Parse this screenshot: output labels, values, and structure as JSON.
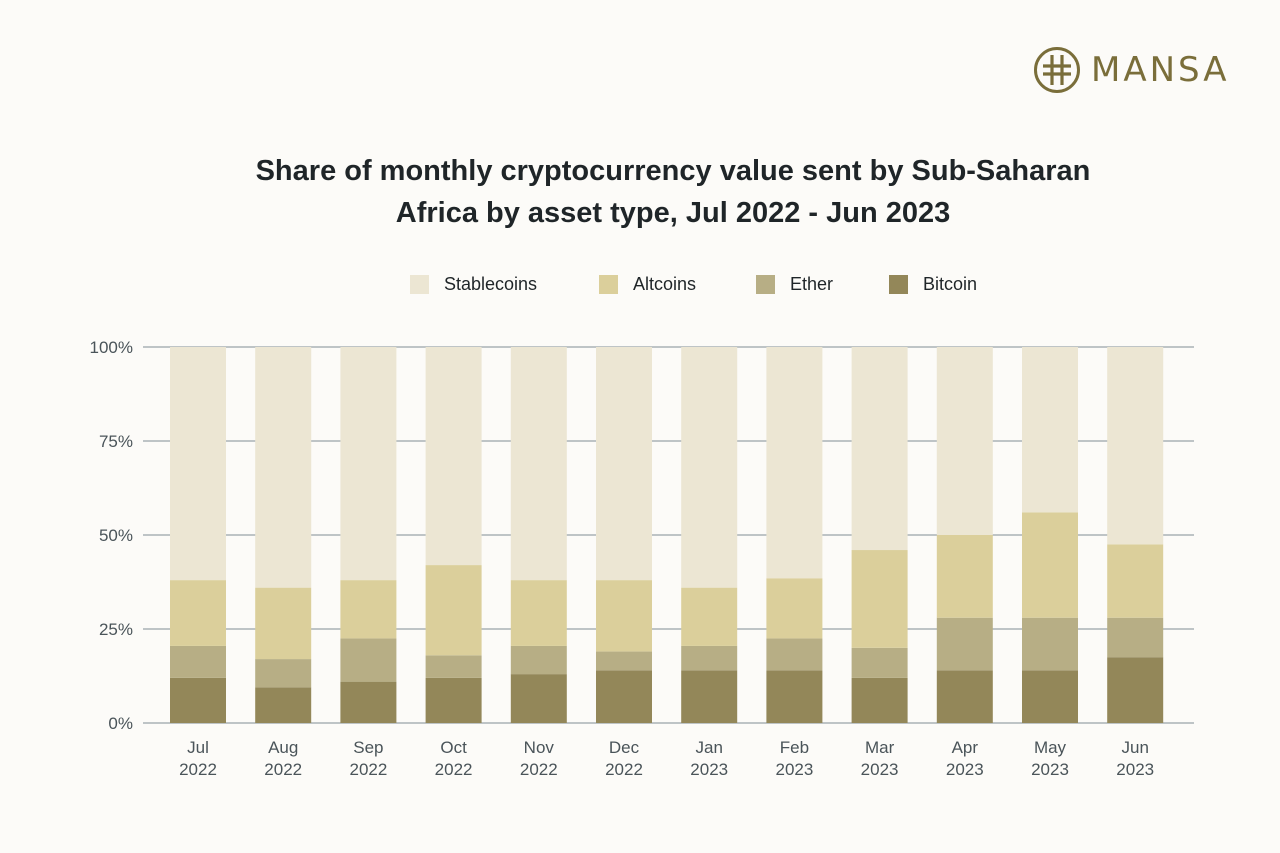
{
  "brand": {
    "name": "MANSA",
    "color": "#7a6e3a"
  },
  "chart_data": {
    "type": "bar",
    "stacked": true,
    "title": "Share of monthly cryptocurrency value sent by Sub-Saharan Africa by asset type, Jul 2022 - Jun 2023",
    "title_lines": [
      "Share of monthly cryptocurrency value sent by Sub-Saharan",
      "Africa by asset type, Jul 2022 - Jun 2023"
    ],
    "categories": [
      "Jul 2022",
      "Aug 2022",
      "Sep 2022",
      "Oct 2022",
      "Nov 2022",
      "Dec 2022",
      "Jan 2023",
      "Feb 2023",
      "Mar 2023",
      "Apr 2023",
      "May 2023",
      "Jun 2023"
    ],
    "category_lines": [
      [
        "Jul",
        "2022"
      ],
      [
        "Aug",
        "2022"
      ],
      [
        "Sep",
        "2022"
      ],
      [
        "Oct",
        "2022"
      ],
      [
        "Nov",
        "2022"
      ],
      [
        "Dec",
        "2022"
      ],
      [
        "Jan",
        "2023"
      ],
      [
        "Feb",
        "2023"
      ],
      [
        "Mar",
        "2023"
      ],
      [
        "Apr",
        "2023"
      ],
      [
        "May",
        "2023"
      ],
      [
        "Jun",
        "2023"
      ]
    ],
    "series": [
      {
        "name": "Bitcoin",
        "color": "#938759",
        "values": [
          12,
          9.5,
          11,
          12,
          13,
          14,
          14,
          14,
          12,
          14,
          14,
          17.5
        ]
      },
      {
        "name": "Ether",
        "color": "#b7ae85",
        "values": [
          8.5,
          7.5,
          11.5,
          6,
          7.5,
          5,
          6.5,
          8.5,
          8,
          14,
          14,
          10.5
        ]
      },
      {
        "name": "Altcoins",
        "color": "#dbcf9b",
        "values": [
          17.5,
          19,
          15.5,
          24,
          17.5,
          19,
          15.5,
          16,
          26,
          22,
          28,
          19.5
        ]
      },
      {
        "name": "Stablecoins",
        "color": "#ece6d3",
        "values": [
          62,
          64,
          62,
          58,
          62,
          62,
          64,
          61.5,
          54,
          50,
          44,
          52.5
        ]
      }
    ],
    "legend_order": [
      "Stablecoins",
      "Altcoins",
      "Ether",
      "Bitcoin"
    ],
    "legend_position": "top-center",
    "yticks": [
      "0%",
      "25%",
      "50%",
      "75%",
      "100%"
    ],
    "ytick_values": [
      0,
      25,
      50,
      75,
      100
    ],
    "ylim": [
      0,
      100
    ],
    "grid": "horizontal",
    "grid_color": "#a9b1b5"
  }
}
